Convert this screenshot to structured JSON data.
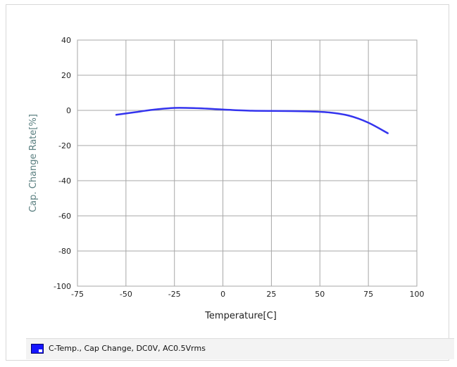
{
  "colors": {
    "series": "#3434ee",
    "grid": "#a7a7a7",
    "axis_text": "#222222",
    "ylabel_text": "#5a7f80",
    "legend_swatch": "#1515ff"
  },
  "legend": {
    "icon": "series-color-swatch",
    "label": "C-Temp., Cap Change, DC0V, AC0.5Vrms"
  },
  "chart_data": {
    "type": "line",
    "title": "",
    "xlabel": "Temperature[C]",
    "ylabel": "Cap. Change Rate[%]",
    "xlim": [
      -75,
      100
    ],
    "ylim": [
      -100,
      40
    ],
    "xticks": [
      -75,
      -50,
      -25,
      0,
      25,
      50,
      75,
      100
    ],
    "yticks": [
      -100,
      -80,
      -60,
      -40,
      -20,
      0,
      20,
      40
    ],
    "xtick_labels": [
      "-75",
      "-50",
      "-25",
      "0",
      "25",
      "50",
      "75",
      "100"
    ],
    "ytick_labels": [
      "-100",
      "-80",
      "-60",
      "-40",
      "-20",
      "0",
      "20",
      "40"
    ],
    "grid": true,
    "legend_position": "bottom",
    "series": [
      {
        "name": "C-Temp., Cap Change, DC0V, AC0.5Vrms",
        "x": [
          -55,
          -45,
          -35,
          -25,
          -15,
          -5,
          5,
          15,
          25,
          35,
          45,
          55,
          65,
          75,
          85
        ],
        "y": [
          -2.5,
          -1.0,
          0.5,
          1.4,
          1.3,
          0.8,
          0.2,
          -0.2,
          -0.3,
          -0.4,
          -0.6,
          -1.2,
          -3.0,
          -7.0,
          -13.0
        ]
      }
    ]
  }
}
